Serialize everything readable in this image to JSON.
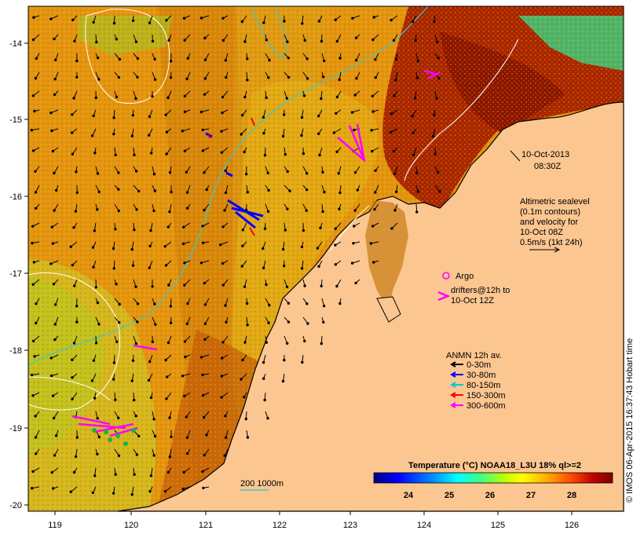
{
  "map": {
    "lon_ticks": [
      "119",
      "120",
      "121",
      "122",
      "123",
      "124",
      "125",
      "126"
    ],
    "lat_ticks": [
      "-14",
      "-15",
      "-16",
      "-17",
      "-18",
      "-19",
      "-20"
    ],
    "lon_range": [
      118.6,
      126.75
    ],
    "lat_range": [
      -20.1,
      -13.6
    ]
  },
  "annotations": {
    "date": "10-Oct-2013",
    "time": "08:30Z",
    "altimetry_line1": "Altimetric sealevel",
    "altimetry_line2": "(0.1m contours)",
    "altimetry_line3": "and velocity for",
    "altimetry_line4": "10-Oct 08Z",
    "altimetry_line5": "0.5m/s (1kt 24h)",
    "argo_label": "Argo",
    "drifters_line1": "drifters@12h to",
    "drifters_line2": "10-Oct 12Z",
    "scale_bar_label": "200  1000m"
  },
  "legend": {
    "title": "ANMN 12h av.",
    "items": [
      {
        "label": "0-30m",
        "color": "#000000"
      },
      {
        "label": "30-80m",
        "color": "#0000ff"
      },
      {
        "label": "80-150m",
        "color": "#00cccc"
      },
      {
        "label": "150-300m",
        "color": "#ff0000"
      },
      {
        "label": "300-600m",
        "color": "#ff00ff"
      }
    ]
  },
  "colorbar": {
    "title": "Temperature (°C) NOAA18_L3U 18% ql>=2",
    "ticks": [
      "24",
      "25",
      "26",
      "27",
      "28"
    ],
    "colors": [
      "#000080",
      "#0000ff",
      "#0080ff",
      "#00ffff",
      "#00ff80",
      "#80ff00",
      "#ffff00",
      "#ffc000",
      "#ff8000",
      "#ff4000",
      "#c00000",
      "#800000"
    ]
  },
  "credit": "© IMOS 06-Apr-2015 16:37:43 Hobart time",
  "colors": {
    "land": "#fcc690",
    "sea_warm": "#e08a0c",
    "sea_mid": "#e6a30f",
    "sea_cool": "#d9b820",
    "sea_hot": "#8a1500",
    "isobath_200": "#40c8c8",
    "isobath_1000": "#ffffff"
  }
}
